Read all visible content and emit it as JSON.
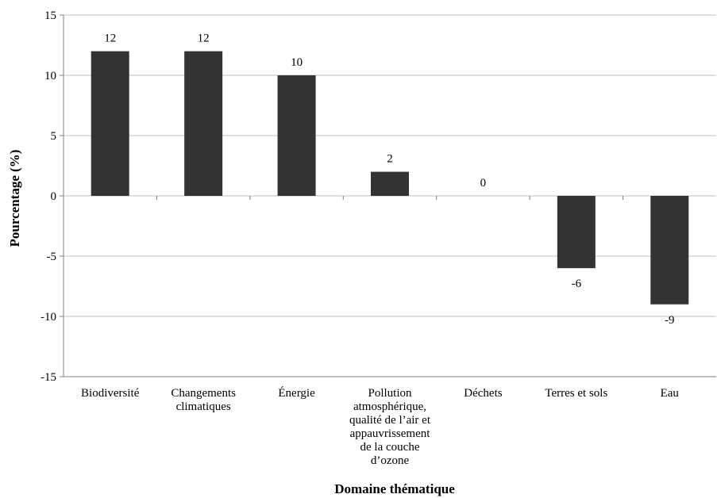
{
  "chart_data": {
    "type": "bar",
    "categories": [
      "Biodiversité",
      "Changements climatiques",
      "Énergie",
      "Pollution atmosphérique, qualité de l’air et appauvrissement de la couche d’ozone",
      "Déchets",
      "Terres et sols",
      "Eau"
    ],
    "category_lines": [
      [
        "Biodiversité"
      ],
      [
        "Changements",
        "climatiques"
      ],
      [
        "Énergie"
      ],
      [
        "Pollution",
        "atmosphérique,",
        "qualité de l’air et",
        "appauvrissement",
        "de la couche",
        "d’ozone"
      ],
      [
        "Déchets"
      ],
      [
        "Terres et sols"
      ],
      [
        "Eau"
      ]
    ],
    "values": [
      12,
      12,
      10,
      2,
      0,
      -6,
      -9
    ],
    "data_labels": [
      "12",
      "12",
      "10",
      "2",
      "0",
      "-6",
      "-9"
    ],
    "xlabel": "Domaine thématique",
    "ylabel": "Pourcentage (%)",
    "ylim": [
      -15,
      15
    ],
    "yticks": [
      15,
      10,
      5,
      0,
      -5,
      -10,
      -15
    ],
    "grid": true,
    "legend": "none",
    "colors": {
      "bar": "#333333",
      "grid": "#bfbfbf",
      "axis": "#808080"
    }
  }
}
